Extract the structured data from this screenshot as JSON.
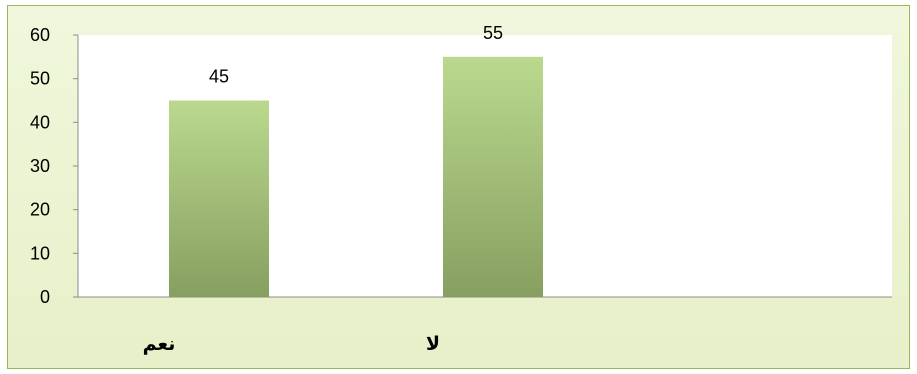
{
  "chart_data": {
    "type": "bar",
    "categories": [
      "نعم",
      "لا"
    ],
    "values": [
      45,
      55
    ],
    "data_labels": [
      "45",
      "55"
    ],
    "ylim": [
      0,
      60
    ],
    "yticks": [
      "0",
      "10",
      "20",
      "30",
      "40",
      "50",
      "60"
    ],
    "grid": false,
    "legend": "none",
    "colors": {
      "bar_top": "#bad98e",
      "bar_bottom": "#879f60",
      "plot_bg": "#ffffff",
      "chart_bg": "#e9f2ce",
      "border": "#98b85c"
    }
  }
}
